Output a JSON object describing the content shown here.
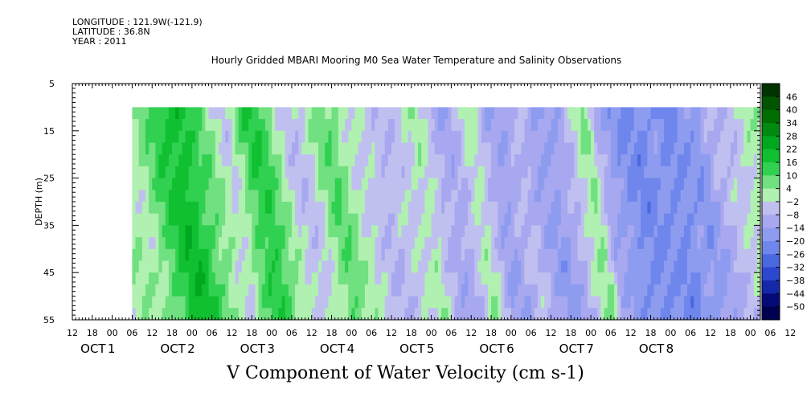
{
  "meta": {
    "longitude": "LONGITUDE : 121.9W(-121.9)",
    "latitude": "LATITUDE : 36.8N",
    "year": "YEAR : 2011"
  },
  "title": "Hourly Gridded MBARI Mooring M0 Sea Water Temperature and Salinity Observations",
  "footer": "V Component of Water Velocity (cm s-1)",
  "chart_data": {
    "type": "heatmap",
    "title": "Hourly Gridded MBARI Mooring M0 Sea Water Temperature and Salinity Observations",
    "xlabel": "",
    "ylabel": "DEPTH (m)",
    "colorbar_label": "V Component of Water Velocity (cm s-1)",
    "x_range_hours": [
      -12,
      195
    ],
    "data_start_hour": 6,
    "y_range_m": [
      5,
      55
    ],
    "data_depth_range_m": [
      10,
      55
    ],
    "y_reversed": true,
    "y_ticks": [
      5,
      15,
      25,
      35,
      45,
      55
    ],
    "x_hour_labels": [
      "12",
      "18",
      "00",
      "06",
      "12",
      "18",
      "00",
      "06",
      "12",
      "18",
      "00",
      "06",
      "12",
      "18",
      "00",
      "06",
      "12",
      "18",
      "00",
      "06",
      "12",
      "18",
      "00",
      "06",
      "12",
      "18",
      "00",
      "06",
      "12",
      "18",
      "00",
      "06",
      "12",
      "18",
      "00",
      "06",
      "12"
    ],
    "x_day_labels": [
      {
        "month": "OCT",
        "day": "1"
      },
      {
        "month": "OCT",
        "day": "2"
      },
      {
        "month": "OCT",
        "day": "3"
      },
      {
        "month": "OCT",
        "day": "4"
      },
      {
        "month": "OCT",
        "day": "5"
      },
      {
        "month": "OCT",
        "day": "6"
      },
      {
        "month": "OCT",
        "day": "7"
      },
      {
        "month": "OCT",
        "day": "8"
      }
    ],
    "colorbar_levels": [
      "46",
      "40",
      "34",
      "28",
      "22",
      "16",
      "10",
      "4",
      "-2",
      "-8",
      "-14",
      "-20",
      "-26",
      "-32",
      "-38",
      "-44",
      "-50"
    ],
    "colorbar_colors": [
      "#003300",
      "#005500",
      "#006e00",
      "#008a10",
      "#00a820",
      "#10c030",
      "#30d050",
      "#70e080",
      "#b0f0b0",
      "#c0c0f0",
      "#a8a8f0",
      "#8e9cf0",
      "#6f86ec",
      "#4a68e0",
      "#2c48d0",
      "#1528a8",
      "#060a78",
      "#000050"
    ],
    "time_profile": [
      {
        "hour": 6,
        "v": 2
      },
      {
        "hour": 9,
        "v": 8
      },
      {
        "hour": 12,
        "v": 14
      },
      {
        "hour": 15,
        "v": 18
      },
      {
        "hour": 18,
        "v": 20
      },
      {
        "hour": 21,
        "v": 16
      },
      {
        "hour": 24,
        "v": 10
      },
      {
        "hour": 27,
        "v": 6
      },
      {
        "hour": 30,
        "v": 0
      },
      {
        "hour": 33,
        "v": -4
      },
      {
        "hour": 36,
        "v": 6
      },
      {
        "hour": 39,
        "v": 14
      },
      {
        "hour": 42,
        "v": 16
      },
      {
        "hour": 45,
        "v": 8
      },
      {
        "hour": 48,
        "v": 2
      },
      {
        "hour": 51,
        "v": -4
      },
      {
        "hour": 54,
        "v": -6
      },
      {
        "hour": 57,
        "v": -2
      },
      {
        "hour": 60,
        "v": 4
      },
      {
        "hour": 63,
        "v": 10
      },
      {
        "hour": 66,
        "v": 6
      },
      {
        "hour": 69,
        "v": 0
      },
      {
        "hour": 72,
        "v": -2
      },
      {
        "hour": 75,
        "v": -4
      },
      {
        "hour": 78,
        "v": -8
      },
      {
        "hour": 81,
        "v": -6
      },
      {
        "hour": 84,
        "v": -4
      },
      {
        "hour": 87,
        "v": -2
      },
      {
        "hour": 90,
        "v": 2
      },
      {
        "hour": 93,
        "v": -4
      },
      {
        "hour": 96,
        "v": -10
      },
      {
        "hour": 99,
        "v": -12
      },
      {
        "hour": 102,
        "v": -8
      },
      {
        "hour": 105,
        "v": 2
      },
      {
        "hour": 108,
        "v": -2
      },
      {
        "hour": 111,
        "v": -12
      },
      {
        "hour": 114,
        "v": -14
      },
      {
        "hour": 117,
        "v": -10
      },
      {
        "hour": 120,
        "v": -6
      },
      {
        "hour": 123,
        "v": -10
      },
      {
        "hour": 126,
        "v": -14
      },
      {
        "hour": 129,
        "v": -16
      },
      {
        "hour": 132,
        "v": -12
      },
      {
        "hour": 135,
        "v": -8
      },
      {
        "hour": 138,
        "v": 0
      },
      {
        "hour": 141,
        "v": 6
      },
      {
        "hour": 144,
        "v": -10
      },
      {
        "hour": 147,
        "v": -14
      },
      {
        "hour": 150,
        "v": -18
      },
      {
        "hour": 153,
        "v": -20
      },
      {
        "hour": 156,
        "v": -22
      },
      {
        "hour": 159,
        "v": -20
      },
      {
        "hour": 162,
        "v": -18
      },
      {
        "hour": 165,
        "v": -22
      },
      {
        "hour": 168,
        "v": -20
      },
      {
        "hour": 171,
        "v": -16
      },
      {
        "hour": 174,
        "v": -18
      },
      {
        "hour": 177,
        "v": -12
      },
      {
        "hour": 180,
        "v": -8
      },
      {
        "hour": 183,
        "v": -6
      },
      {
        "hour": 186,
        "v": -4
      },
      {
        "hour": 189,
        "v": 2
      },
      {
        "hour": 192,
        "v": 0
      }
    ]
  }
}
